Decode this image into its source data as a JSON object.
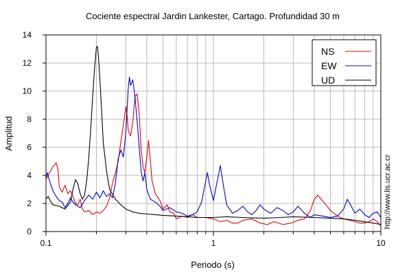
{
  "chart_data": {
    "type": "line",
    "title": "Cociente espectral Jardin Lankester, Cartago. Profundidad 30 m",
    "xlabel": "Periodo (s)",
    "ylabel": "Amplitud",
    "x_scale": "log",
    "xlim": [
      0.1,
      10
    ],
    "ylim": [
      0,
      14
    ],
    "x_tick_labels": [
      {
        "value": 0.1,
        "label": "0.1"
      },
      {
        "value": 1,
        "label": "1"
      },
      {
        "value": 10,
        "label": "10"
      }
    ],
    "y_ticks": [
      0,
      2,
      4,
      6,
      8,
      10,
      12,
      14
    ],
    "grid": true,
    "legend_position": "top-right",
    "side_note": "http://www.lis.ucr.ac.cr",
    "series": [
      {
        "name": "NS",
        "color": "#e00000",
        "points": [
          [
            0.1,
            3.7
          ],
          [
            0.105,
            4.2
          ],
          [
            0.11,
            4.6
          ],
          [
            0.115,
            4.9
          ],
          [
            0.118,
            4.4
          ],
          [
            0.12,
            3.2
          ],
          [
            0.125,
            2.8
          ],
          [
            0.13,
            3.3
          ],
          [
            0.135,
            2.7
          ],
          [
            0.14,
            2.9
          ],
          [
            0.145,
            2.5
          ],
          [
            0.15,
            2.0
          ],
          [
            0.155,
            1.9
          ],
          [
            0.16,
            2.3
          ],
          [
            0.165,
            1.6
          ],
          [
            0.17,
            1.4
          ],
          [
            0.18,
            1.5
          ],
          [
            0.19,
            1.2
          ],
          [
            0.2,
            1.4
          ],
          [
            0.21,
            1.3
          ],
          [
            0.22,
            1.5
          ],
          [
            0.23,
            1.8
          ],
          [
            0.24,
            2.4
          ],
          [
            0.25,
            3.5
          ],
          [
            0.26,
            4.2
          ],
          [
            0.27,
            5.0
          ],
          [
            0.28,
            6.4
          ],
          [
            0.29,
            7.6
          ],
          [
            0.3,
            8.9
          ],
          [
            0.305,
            8.3
          ],
          [
            0.31,
            7.2
          ],
          [
            0.32,
            6.8
          ],
          [
            0.33,
            7.8
          ],
          [
            0.34,
            9.6
          ],
          [
            0.35,
            9.8
          ],
          [
            0.36,
            8.5
          ],
          [
            0.37,
            5.9
          ],
          [
            0.38,
            4.6
          ],
          [
            0.39,
            4.2
          ],
          [
            0.4,
            5.3
          ],
          [
            0.41,
            6.5
          ],
          [
            0.42,
            5.1
          ],
          [
            0.43,
            3.6
          ],
          [
            0.45,
            2.7
          ],
          [
            0.48,
            2.2
          ],
          [
            0.5,
            1.6
          ],
          [
            0.53,
            1.9
          ],
          [
            0.55,
            1.4
          ],
          [
            0.58,
            1.3
          ],
          [
            0.6,
            0.9
          ],
          [
            0.65,
            1.1
          ],
          [
            0.7,
            1.0
          ],
          [
            0.75,
            1.2
          ],
          [
            0.8,
            1.0
          ],
          [
            0.9,
            1.0
          ],
          [
            1.0,
            0.9
          ],
          [
            1.1,
            0.7
          ],
          [
            1.2,
            0.8
          ],
          [
            1.3,
            0.6
          ],
          [
            1.4,
            0.6
          ],
          [
            1.5,
            0.8
          ],
          [
            1.7,
            0.9
          ],
          [
            1.9,
            0.6
          ],
          [
            2.1,
            0.5
          ],
          [
            2.3,
            0.7
          ],
          [
            2.6,
            0.5
          ],
          [
            2.9,
            0.6
          ],
          [
            3.2,
            0.8
          ],
          [
            3.5,
            0.9
          ],
          [
            3.8,
            1.5
          ],
          [
            4.0,
            2.3
          ],
          [
            4.2,
            2.6
          ],
          [
            4.4,
            2.3
          ],
          [
            4.7,
            1.9
          ],
          [
            5.0,
            1.5
          ],
          [
            5.5,
            1.1
          ],
          [
            6.0,
            0.9
          ],
          [
            6.5,
            0.8
          ],
          [
            7.0,
            0.7
          ],
          [
            7.5,
            0.6
          ],
          [
            8.0,
            0.6
          ],
          [
            8.5,
            0.7
          ],
          [
            9.0,
            0.9
          ],
          [
            9.5,
            0.7
          ],
          [
            10.0,
            0.4
          ]
        ]
      },
      {
        "name": "EW",
        "color": "#0000cc",
        "points": [
          [
            0.1,
            3.8
          ],
          [
            0.102,
            4.2
          ],
          [
            0.105,
            3.6
          ],
          [
            0.11,
            2.9
          ],
          [
            0.115,
            2.5
          ],
          [
            0.12,
            2.2
          ],
          [
            0.125,
            2.1
          ],
          [
            0.13,
            1.7
          ],
          [
            0.135,
            2.0
          ],
          [
            0.14,
            2.4
          ],
          [
            0.145,
            2.1
          ],
          [
            0.15,
            1.9
          ],
          [
            0.16,
            1.7
          ],
          [
            0.17,
            2.2
          ],
          [
            0.18,
            2.6
          ],
          [
            0.19,
            2.3
          ],
          [
            0.2,
            2.8
          ],
          [
            0.21,
            2.4
          ],
          [
            0.22,
            2.9
          ],
          [
            0.23,
            2.5
          ],
          [
            0.24,
            2.7
          ],
          [
            0.25,
            2.4
          ],
          [
            0.26,
            3.5
          ],
          [
            0.27,
            5.2
          ],
          [
            0.28,
            5.8
          ],
          [
            0.29,
            5.3
          ],
          [
            0.3,
            7.1
          ],
          [
            0.31,
            10.2
          ],
          [
            0.315,
            11.0
          ],
          [
            0.32,
            10.4
          ],
          [
            0.33,
            10.8
          ],
          [
            0.34,
            9.6
          ],
          [
            0.35,
            7.9
          ],
          [
            0.36,
            6.1
          ],
          [
            0.37,
            4.3
          ],
          [
            0.38,
            3.6
          ],
          [
            0.39,
            4.2
          ],
          [
            0.4,
            3.0
          ],
          [
            0.42,
            2.3
          ],
          [
            0.45,
            2.1
          ],
          [
            0.48,
            1.8
          ],
          [
            0.5,
            1.5
          ],
          [
            0.55,
            1.7
          ],
          [
            0.6,
            1.4
          ],
          [
            0.65,
            1.3
          ],
          [
            0.7,
            1.1
          ],
          [
            0.75,
            1.2
          ],
          [
            0.8,
            1.4
          ],
          [
            0.85,
            2.1
          ],
          [
            0.9,
            3.6
          ],
          [
            0.92,
            4.2
          ],
          [
            0.95,
            3.3
          ],
          [
            1.0,
            2.2
          ],
          [
            1.05,
            3.5
          ],
          [
            1.1,
            4.7
          ],
          [
            1.15,
            3.2
          ],
          [
            1.2,
            1.9
          ],
          [
            1.3,
            1.3
          ],
          [
            1.4,
            1.5
          ],
          [
            1.5,
            1.8
          ],
          [
            1.6,
            1.4
          ],
          [
            1.7,
            1.2
          ],
          [
            1.8,
            1.5
          ],
          [
            1.9,
            1.9
          ],
          [
            2.0,
            1.6
          ],
          [
            2.2,
            1.3
          ],
          [
            2.4,
            1.7
          ],
          [
            2.6,
            1.5
          ],
          [
            2.8,
            1.2
          ],
          [
            3.0,
            1.4
          ],
          [
            3.2,
            1.8
          ],
          [
            3.5,
            1.3
          ],
          [
            3.8,
            1.0
          ],
          [
            4.0,
            1.2
          ],
          [
            4.5,
            1.1
          ],
          [
            5.0,
            1.0
          ],
          [
            5.5,
            1.1
          ],
          [
            6.0,
            1.6
          ],
          [
            6.3,
            2.3
          ],
          [
            6.6,
            1.9
          ],
          [
            7.0,
            1.3
          ],
          [
            7.5,
            1.6
          ],
          [
            8.0,
            1.2
          ],
          [
            8.5,
            1.0
          ],
          [
            9.0,
            1.3
          ],
          [
            9.5,
            1.4
          ],
          [
            10.0,
            1.0
          ]
        ]
      },
      {
        "name": "UD",
        "color": "#000000",
        "points": [
          [
            0.1,
            2.3
          ],
          [
            0.103,
            2.5
          ],
          [
            0.106,
            2.2
          ],
          [
            0.11,
            1.9
          ],
          [
            0.12,
            1.8
          ],
          [
            0.13,
            1.6
          ],
          [
            0.14,
            2.1
          ],
          [
            0.145,
            3.0
          ],
          [
            0.15,
            3.7
          ],
          [
            0.155,
            3.4
          ],
          [
            0.16,
            2.7
          ],
          [
            0.165,
            2.3
          ],
          [
            0.17,
            2.6
          ],
          [
            0.175,
            3.6
          ],
          [
            0.18,
            5.2
          ],
          [
            0.185,
            7.3
          ],
          [
            0.19,
            9.6
          ],
          [
            0.195,
            11.6
          ],
          [
            0.2,
            13.1
          ],
          [
            0.203,
            13.2
          ],
          [
            0.206,
            12.4
          ],
          [
            0.21,
            10.8
          ],
          [
            0.215,
            8.6
          ],
          [
            0.22,
            6.3
          ],
          [
            0.23,
            4.3
          ],
          [
            0.24,
            3.0
          ],
          [
            0.26,
            2.3
          ],
          [
            0.28,
            1.9
          ],
          [
            0.3,
            1.6
          ],
          [
            0.33,
            1.4
          ],
          [
            0.36,
            1.3
          ],
          [
            0.4,
            1.25
          ],
          [
            0.45,
            1.2
          ],
          [
            0.5,
            1.15
          ],
          [
            0.6,
            1.1
          ],
          [
            0.7,
            1.05
          ],
          [
            0.8,
            1.0
          ],
          [
            1.0,
            1.0
          ],
          [
            1.2,
            1.05
          ],
          [
            1.5,
            1.0
          ],
          [
            2.0,
            0.95
          ],
          [
            2.5,
            1.0
          ],
          [
            3.0,
            1.05
          ],
          [
            4.0,
            1.0
          ],
          [
            5.0,
            0.95
          ],
          [
            6.0,
            0.9
          ],
          [
            7.0,
            0.8
          ],
          [
            8.0,
            0.7
          ],
          [
            9.0,
            0.6
          ],
          [
            10.0,
            0.5
          ]
        ]
      }
    ]
  }
}
